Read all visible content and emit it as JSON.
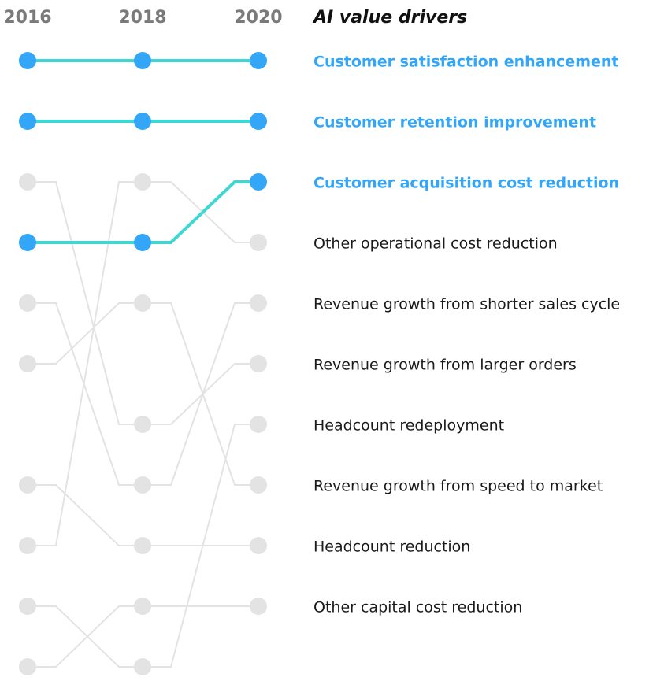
{
  "chart_data": {
    "type": "bump",
    "title": "AI value drivers",
    "x": [
      "2016",
      "2018",
      "2020"
    ],
    "highlight_color": "#33a6f7",
    "highlight_line_color": "#3fd7d1",
    "muted_color": "#e3e3e3",
    "series": [
      {
        "name": "Customer satisfaction enhancement",
        "ranks": [
          1,
          1,
          1
        ],
        "highlight": true
      },
      {
        "name": "Customer retention improvement",
        "ranks": [
          2,
          2,
          2
        ],
        "highlight": true
      },
      {
        "name": "Customer acquisition cost reduction",
        "ranks": [
          4,
          4,
          3
        ],
        "highlight": true
      },
      {
        "name": "Other operational cost reduction",
        "ranks": [
          9,
          3,
          4
        ],
        "highlight": false
      },
      {
        "name": "Revenue growth from shorter sales cycle",
        "ranks": [
          5,
          8,
          5
        ],
        "highlight": false
      },
      {
        "name": "Revenue growth from larger orders",
        "ranks": [
          3,
          7,
          6
        ],
        "highlight": false
      },
      {
        "name": "Headcount redeployment",
        "ranks": [
          10,
          11,
          7
        ],
        "highlight": false
      },
      {
        "name": "Revenue growth from speed to market",
        "ranks": [
          6,
          5,
          8
        ],
        "highlight": false
      },
      {
        "name": "Headcount reduction",
        "ranks": [
          8,
          9,
          9
        ],
        "highlight": false
      },
      {
        "name": "Other capital cost reduction",
        "ranks": [
          11,
          10,
          10
        ],
        "highlight": false
      }
    ]
  }
}
